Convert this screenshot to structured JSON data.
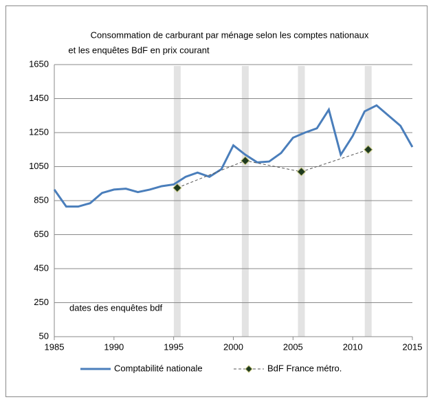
{
  "chart_data": {
    "type": "line",
    "title": [
      "Consommation de carburant par ménage selon les comptes nationaux",
      "et les enquêtes BdF en prix courant"
    ],
    "annotation": "dates des enquêtes bdf",
    "survey_bands": [
      1995.3,
      2001,
      2005.7,
      2011.3
    ],
    "band_color": "#e3e3e3",
    "xlim": [
      1985,
      2015
    ],
    "xticks": [
      1985,
      1990,
      1995,
      2000,
      2005,
      2010,
      2015
    ],
    "ylim": [
      50,
      1650
    ],
    "yticks": [
      50,
      250,
      450,
      650,
      850,
      1050,
      1250,
      1450,
      1650
    ],
    "grid": true,
    "series": [
      {
        "name": "Comptabilité nationale",
        "color": "#4a7ebb",
        "style": "solid",
        "x": [
          1985,
          1986,
          1987,
          1988,
          1989,
          1990,
          1991,
          1992,
          1993,
          1994,
          1995,
          1996,
          1997,
          1998,
          1999,
          2000,
          2001,
          2002,
          2003,
          2004,
          2005,
          2006,
          2007,
          2008,
          2009,
          2010,
          2011,
          2012,
          2013,
          2014,
          2015
        ],
        "values": [
          915,
          815,
          815,
          835,
          895,
          915,
          920,
          900,
          915,
          935,
          945,
          990,
          1015,
          990,
          1035,
          1175,
          1120,
          1075,
          1080,
          1130,
          1220,
          1250,
          1275,
          1385,
          1120,
          1230,
          1375,
          1410,
          1350,
          1290,
          1165
        ]
      },
      {
        "name": "BdF France métro.",
        "color": "#555555",
        "marker_color": "#1f3a1f",
        "style": "dashed",
        "x": [
          1995.3,
          2001,
          2005.7,
          2011.3
        ],
        "values": [
          925,
          1085,
          1020,
          1150
        ]
      }
    ]
  }
}
